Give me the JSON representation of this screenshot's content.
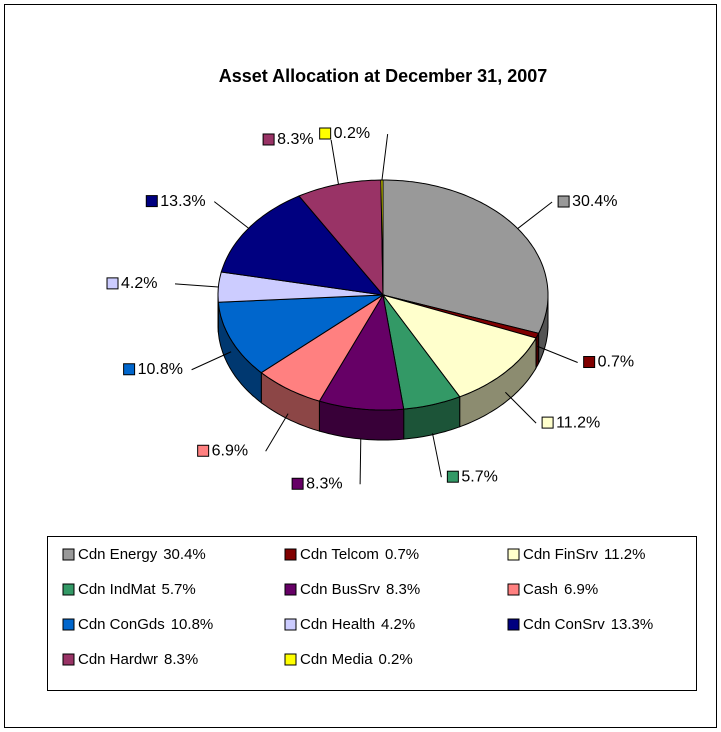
{
  "chart_data": {
    "type": "pie",
    "title": "Asset Allocation at December 31, 2007",
    "categories": [
      "Cdn Energy",
      "Cdn Telcom",
      "Cdn FinSrv",
      "Cdn IndMat",
      "Cdn BusSrv",
      "Cash",
      "Cdn ConGds",
      "Cdn Health",
      "Cdn ConSrv",
      "Cdn Hardwr",
      "Cdn Media"
    ],
    "values": [
      30.4,
      0.7,
      11.2,
      5.7,
      8.3,
      6.9,
      10.8,
      4.2,
      13.3,
      8.3,
      0.2
    ],
    "value_labels": [
      "30.4%",
      "0.7%",
      "11.2%",
      "5.7%",
      "8.3%",
      "6.9%",
      "10.8%",
      "4.2%",
      "13.3%",
      "8.3%",
      "0.2%"
    ],
    "colors": [
      "#999999",
      "#800000",
      "#ffffcc",
      "#339966",
      "#660066",
      "#ff8080",
      "#0066cc",
      "#ccccff",
      "#000080",
      "#993366",
      "#ffff00"
    ],
    "legend": "bottom"
  }
}
